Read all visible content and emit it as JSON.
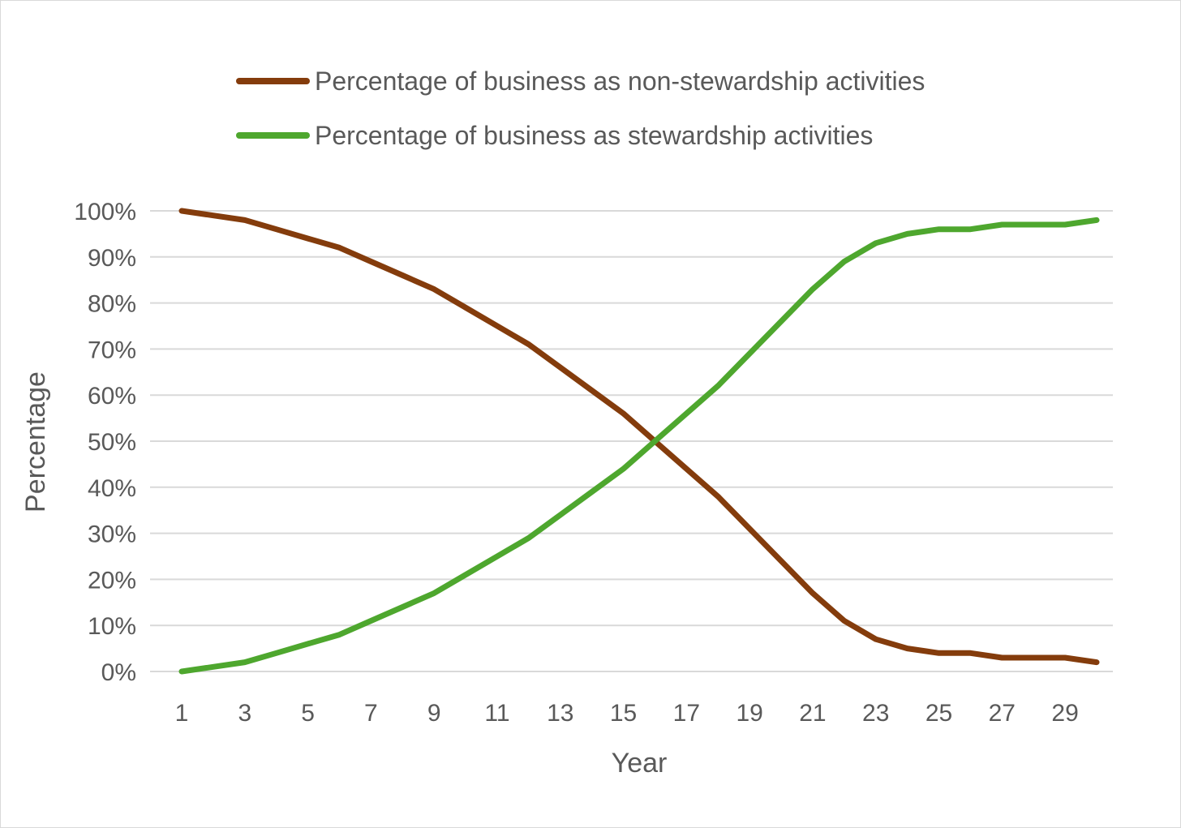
{
  "chart_data": {
    "type": "line",
    "xlabel": "Year",
    "ylabel": "Percentage",
    "x": [
      1,
      2,
      3,
      4,
      5,
      6,
      7,
      8,
      9,
      10,
      11,
      12,
      13,
      14,
      15,
      16,
      17,
      18,
      19,
      20,
      21,
      22,
      23,
      24,
      25,
      26,
      27,
      28,
      29,
      30
    ],
    "x_tick_labels": [
      "1",
      "3",
      "5",
      "7",
      "9",
      "11",
      "13",
      "15",
      "17",
      "19",
      "21",
      "23",
      "25",
      "27",
      "29"
    ],
    "y_tick_labels": [
      "0%",
      "10%",
      "20%",
      "30%",
      "40%",
      "50%",
      "60%",
      "70%",
      "80%",
      "90%",
      "100%"
    ],
    "ylim": [
      0,
      100
    ],
    "grid": true,
    "legend_position": "top",
    "series": [
      {
        "name": "Percentage of business as non-stewardship activities",
        "color": "#843c0c",
        "values": [
          100,
          99,
          98,
          96,
          94,
          92,
          89,
          86,
          83,
          79,
          75,
          71,
          66,
          61,
          56,
          50,
          44,
          38,
          31,
          24,
          17,
          11,
          7,
          5,
          4,
          4,
          3,
          3,
          3,
          2
        ]
      },
      {
        "name": "Percentage of business as stewardship activities",
        "color": "#4ea72e",
        "values": [
          0,
          1,
          2,
          4,
          6,
          8,
          11,
          14,
          17,
          21,
          25,
          29,
          34,
          39,
          44,
          50,
          56,
          62,
          69,
          76,
          83,
          89,
          93,
          95,
          96,
          96,
          97,
          97,
          97,
          98
        ]
      }
    ]
  }
}
